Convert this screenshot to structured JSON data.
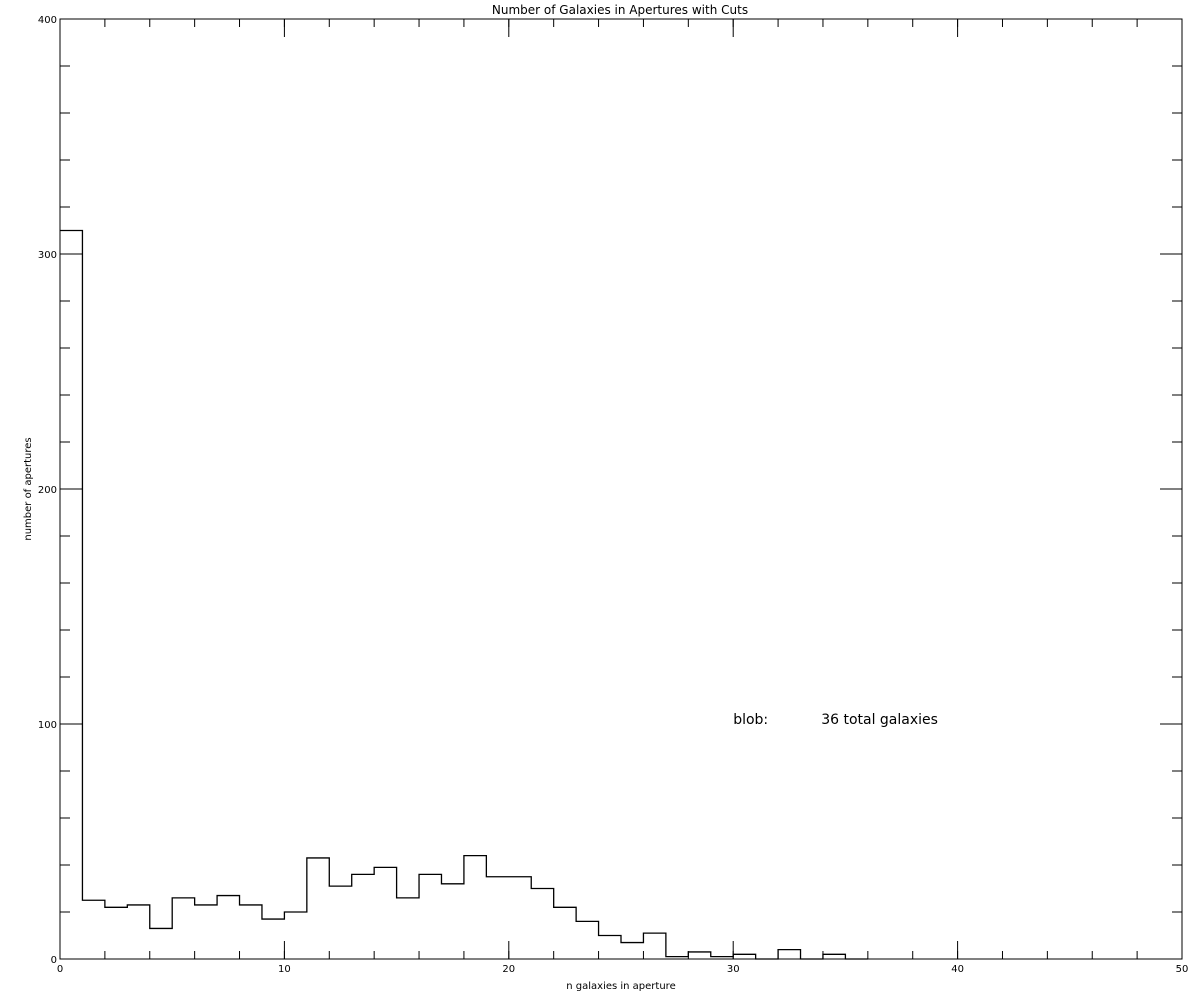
{
  "chart_data": {
    "type": "histogram-step",
    "title": "Number of Galaxies in Apertures with Cuts",
    "xlabel": "n galaxies in aperture",
    "ylabel": "number of apertures",
    "xlim": [
      0,
      50
    ],
    "ylim": [
      0,
      400
    ],
    "x_ticks": [
      0,
      10,
      20,
      30,
      40,
      50
    ],
    "y_ticks": [
      0,
      100,
      200,
      300,
      400
    ],
    "x_minor_step": 2,
    "y_minor_step": 20,
    "bin_width": 1,
    "bins": [
      {
        "x": 0,
        "count": 310
      },
      {
        "x": 1,
        "count": 25
      },
      {
        "x": 2,
        "count": 22
      },
      {
        "x": 3,
        "count": 23
      },
      {
        "x": 4,
        "count": 13
      },
      {
        "x": 5,
        "count": 26
      },
      {
        "x": 6,
        "count": 23
      },
      {
        "x": 7,
        "count": 27
      },
      {
        "x": 8,
        "count": 23
      },
      {
        "x": 9,
        "count": 17
      },
      {
        "x": 10,
        "count": 20
      },
      {
        "x": 11,
        "count": 43
      },
      {
        "x": 12,
        "count": 31
      },
      {
        "x": 13,
        "count": 36
      },
      {
        "x": 14,
        "count": 39
      },
      {
        "x": 15,
        "count": 26
      },
      {
        "x": 16,
        "count": 36
      },
      {
        "x": 17,
        "count": 32
      },
      {
        "x": 18,
        "count": 44
      },
      {
        "x": 19,
        "count": 35
      },
      {
        "x": 20,
        "count": 35
      },
      {
        "x": 21,
        "count": 30
      },
      {
        "x": 22,
        "count": 22
      },
      {
        "x": 23,
        "count": 16
      },
      {
        "x": 24,
        "count": 10
      },
      {
        "x": 25,
        "count": 7
      },
      {
        "x": 26,
        "count": 11
      },
      {
        "x": 27,
        "count": 1
      },
      {
        "x": 28,
        "count": 3
      },
      {
        "x": 29,
        "count": 1
      },
      {
        "x": 30,
        "count": 2
      },
      {
        "x": 31,
        "count": 0
      },
      {
        "x": 32,
        "count": 4
      },
      {
        "x": 33,
        "count": 0
      },
      {
        "x": 34,
        "count": 2
      },
      {
        "x": 35,
        "count": 0
      }
    ],
    "annotation": {
      "label": "blob:",
      "value_text": "36 total galaxies",
      "x": 30,
      "y": 100
    }
  }
}
